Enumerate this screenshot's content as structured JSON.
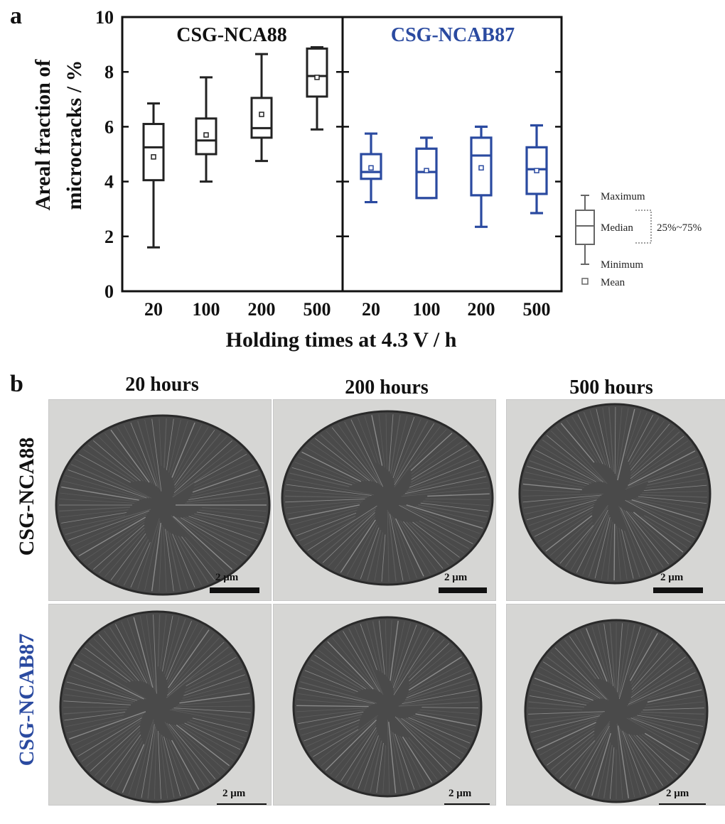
{
  "panel_a_label": "a",
  "panel_b_label": "b",
  "colors": {
    "nca88": "#222222",
    "ncab87": "#2a4aa0",
    "legend": "#666666"
  },
  "chart_data": {
    "type": "box",
    "ylabel_line1": "Areal fraction of",
    "ylabel_line2": "microcracks / %",
    "xlabel": "Holding times at 4.3 V / h",
    "ylim": [
      0,
      10
    ],
    "yticks": [
      "0",
      "2",
      "4",
      "6",
      "8",
      "10"
    ],
    "panels": [
      {
        "title": "CSG-NCA88",
        "color_key": "nca88",
        "categories": [
          "20",
          "100",
          "200",
          "500"
        ],
        "boxes": [
          {
            "min": 1.6,
            "q1": 4.05,
            "median": 5.25,
            "q3": 6.1,
            "max": 6.85,
            "mean": 4.9
          },
          {
            "min": 4.0,
            "q1": 5.0,
            "median": 5.5,
            "q3": 6.3,
            "max": 7.8,
            "mean": 5.7
          },
          {
            "min": 4.75,
            "q1": 5.6,
            "median": 5.95,
            "q3": 7.05,
            "max": 8.65,
            "mean": 6.45
          },
          {
            "min": 5.9,
            "q1": 7.1,
            "median": 7.85,
            "q3": 8.85,
            "max": 8.9,
            "mean": 7.8
          }
        ]
      },
      {
        "title": "CSG-NCAB87",
        "color_key": "ncab87",
        "categories": [
          "20",
          "100",
          "200",
          "500"
        ],
        "boxes": [
          {
            "min": 3.25,
            "q1": 4.1,
            "median": 4.35,
            "q3": 5.0,
            "max": 5.75,
            "mean": 4.5
          },
          {
            "min": 3.4,
            "q1": 3.4,
            "median": 4.35,
            "q3": 5.2,
            "max": 5.6,
            "mean": 4.4
          },
          {
            "min": 2.35,
            "q1": 3.5,
            "median": 4.95,
            "q3": 5.6,
            "max": 6.0,
            "mean": 4.5
          },
          {
            "min": 2.85,
            "q1": 3.55,
            "median": 4.45,
            "q3": 5.25,
            "max": 6.05,
            "mean": 4.4
          }
        ]
      }
    ],
    "legend": {
      "maximum": "Maximum",
      "median": "Median",
      "minimum": "Minimum",
      "mean": "Mean",
      "range": "25%~75%"
    }
  },
  "micrographs": {
    "columns": [
      "20 hours",
      "200 hours",
      "500 hours"
    ],
    "rows": [
      "CSG-NCA88",
      "CSG-NCAB87"
    ],
    "scale_bar": "2 μm"
  }
}
